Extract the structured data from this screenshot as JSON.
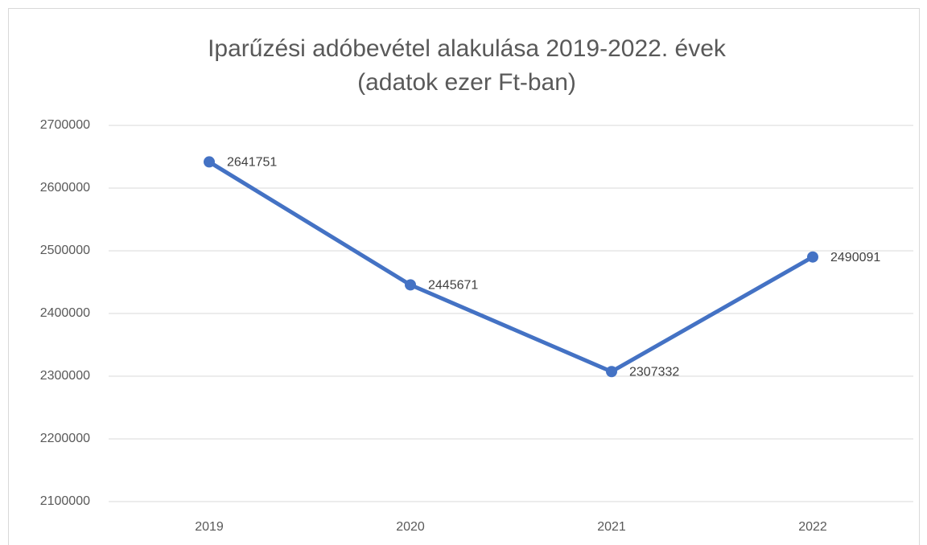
{
  "chart_data": {
    "type": "line",
    "title": "Iparűzési adóbevétel alakulása 2019-2022. évek",
    "subtitle": "(adatok ezer Ft-ban)",
    "categories": [
      "2019",
      "2020",
      "2021",
      "2022"
    ],
    "values": [
      2641751,
      2445671,
      2307332,
      2490091
    ],
    "color": "#4472c4",
    "ylim": [
      2100000,
      2700000
    ],
    "yticks": [
      2100000,
      2200000,
      2300000,
      2400000,
      2500000,
      2600000,
      2700000
    ],
    "grid": true
  }
}
